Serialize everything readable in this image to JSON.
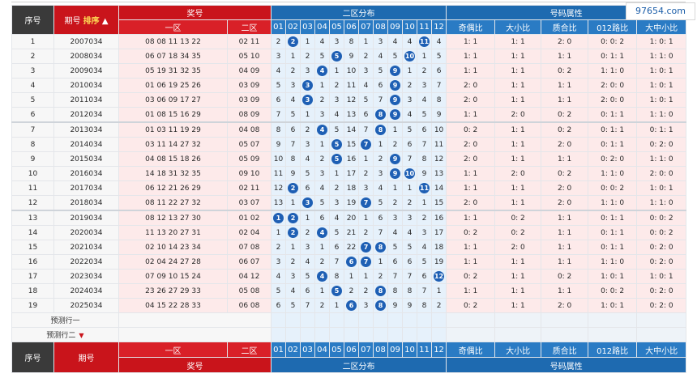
{
  "header": {
    "seq": "序号",
    "period": "期号",
    "sort": "排序",
    "prize_number": "奖号",
    "zone1": "一区",
    "zone2": "二区",
    "dist": "二区分布",
    "attr": "号码属性",
    "nums": [
      "01",
      "02",
      "03",
      "04",
      "05",
      "06",
      "07",
      "08",
      "09",
      "10",
      "11",
      "12"
    ],
    "attr_cols": [
      "奇偶比",
      "大小比",
      "质合比",
      "012路比",
      "大中小比"
    ]
  },
  "rows": [
    {
      "idx": "1",
      "period": "2007034",
      "z1": "08 08 11 13 22",
      "z2": "02 11",
      "dist": [
        "2",
        "2",
        "1",
        "4",
        "3",
        "8",
        "1",
        "3",
        "4",
        "4",
        "11",
        "4"
      ],
      "hits": [
        2,
        11
      ],
      "attrs": [
        "1: 1",
        "1: 1",
        "2: 0",
        "0: 0: 2",
        "1: 0: 1"
      ]
    },
    {
      "idx": "2",
      "period": "2008034",
      "z1": "06 07 18 34 35",
      "z2": "05 10",
      "dist": [
        "3",
        "1",
        "2",
        "5",
        "5",
        "9",
        "2",
        "4",
        "5",
        "10",
        "1",
        "5"
      ],
      "hits": [
        5,
        10
      ],
      "attrs": [
        "1: 1",
        "1: 1",
        "1: 1",
        "0: 1: 1",
        "1: 1: 0"
      ]
    },
    {
      "idx": "3",
      "period": "2009034",
      "z1": "05 19 31 32 35",
      "z2": "04 09",
      "dist": [
        "4",
        "2",
        "3",
        "4",
        "1",
        "10",
        "3",
        "5",
        "9",
        "1",
        "2",
        "6"
      ],
      "hits": [
        4,
        9
      ],
      "attrs": [
        "1: 1",
        "1: 1",
        "0: 2",
        "1: 1: 0",
        "1: 0: 1"
      ]
    },
    {
      "idx": "4",
      "period": "2010034",
      "z1": "01 06 19 25 26",
      "z2": "03 09",
      "dist": [
        "5",
        "3",
        "3",
        "1",
        "2",
        "11",
        "4",
        "6",
        "9",
        "2",
        "3",
        "7"
      ],
      "hits": [
        3,
        9
      ],
      "attrs": [
        "2: 0",
        "1: 1",
        "1: 1",
        "2: 0: 0",
        "1: 0: 1"
      ]
    },
    {
      "idx": "5",
      "period": "2011034",
      "z1": "03 06 09 17 27",
      "z2": "03 09",
      "dist": [
        "6",
        "4",
        "3",
        "2",
        "3",
        "12",
        "5",
        "7",
        "9",
        "3",
        "4",
        "8"
      ],
      "hits": [
        3,
        9
      ],
      "attrs": [
        "2: 0",
        "1: 1",
        "1: 1",
        "2: 0: 0",
        "1: 0: 1"
      ]
    },
    {
      "idx": "6",
      "period": "2012034",
      "z1": "01 08 15 16 29",
      "z2": "08 09",
      "dist": [
        "7",
        "5",
        "1",
        "3",
        "4",
        "13",
        "6",
        "8",
        "9",
        "4",
        "5",
        "9"
      ],
      "hits": [
        8,
        9
      ],
      "attrs": [
        "1: 1",
        "2: 0",
        "0: 2",
        "0: 1: 1",
        "1: 1: 0"
      ]
    },
    {
      "idx": "7",
      "period": "2013034",
      "z1": "01 03 11 19 29",
      "z2": "04 08",
      "dist": [
        "8",
        "6",
        "2",
        "4",
        "5",
        "14",
        "7",
        "8",
        "1",
        "5",
        "6",
        "10"
      ],
      "hits": [
        4,
        8
      ],
      "attrs": [
        "0: 2",
        "1: 1",
        "0: 2",
        "0: 1: 1",
        "0: 1: 1"
      ]
    },
    {
      "idx": "8",
      "period": "2014034",
      "z1": "03 11 14 27 32",
      "z2": "05 07",
      "dist": [
        "9",
        "7",
        "3",
        "1",
        "5",
        "15",
        "7",
        "1",
        "2",
        "6",
        "7",
        "11"
      ],
      "hits": [
        5,
        7
      ],
      "attrs": [
        "2: 0",
        "1: 1",
        "2: 0",
        "0: 1: 1",
        "0: 2: 0"
      ]
    },
    {
      "idx": "9",
      "period": "2015034",
      "z1": "04 08 15 18 26",
      "z2": "05 09",
      "dist": [
        "10",
        "8",
        "4",
        "2",
        "5",
        "16",
        "1",
        "2",
        "9",
        "7",
        "8",
        "12"
      ],
      "hits": [
        5,
        9
      ],
      "attrs": [
        "2: 0",
        "1: 1",
        "1: 1",
        "0: 2: 0",
        "1: 1: 0"
      ]
    },
    {
      "idx": "10",
      "period": "2016034",
      "z1": "14 18 31 32 35",
      "z2": "09 10",
      "dist": [
        "11",
        "9",
        "5",
        "3",
        "1",
        "17",
        "2",
        "3",
        "9",
        "10",
        "9",
        "13"
      ],
      "hits": [
        9,
        10
      ],
      "attrs": [
        "1: 1",
        "2: 0",
        "0: 2",
        "1: 1: 0",
        "2: 0: 0"
      ]
    },
    {
      "idx": "11",
      "period": "2017034",
      "z1": "06 12 21 26 29",
      "z2": "02 11",
      "dist": [
        "12",
        "2",
        "6",
        "4",
        "2",
        "18",
        "3",
        "4",
        "1",
        "1",
        "11",
        "14"
      ],
      "hits": [
        2,
        11
      ],
      "attrs": [
        "1: 1",
        "1: 1",
        "2: 0",
        "0: 0: 2",
        "1: 0: 1"
      ]
    },
    {
      "idx": "12",
      "period": "2018034",
      "z1": "08 11 22 27 32",
      "z2": "03 07",
      "dist": [
        "13",
        "1",
        "3",
        "5",
        "3",
        "19",
        "7",
        "5",
        "2",
        "2",
        "1",
        "15"
      ],
      "hits": [
        3,
        7
      ],
      "attrs": [
        "2: 0",
        "1: 1",
        "2: 0",
        "1: 1: 0",
        "1: 1: 0"
      ]
    },
    {
      "idx": "13",
      "period": "2019034",
      "z1": "08 12 13 27 30",
      "z2": "01 02",
      "dist": [
        "1",
        "2",
        "1",
        "6",
        "4",
        "20",
        "1",
        "6",
        "3",
        "3",
        "2",
        "16"
      ],
      "hits": [
        1,
        2
      ],
      "attrs": [
        "1: 1",
        "0: 2",
        "1: 1",
        "0: 1: 1",
        "0: 0: 2"
      ]
    },
    {
      "idx": "14",
      "period": "2020034",
      "z1": "11 13 20 27 31",
      "z2": "02 04",
      "dist": [
        "1",
        "2",
        "2",
        "4",
        "5",
        "21",
        "2",
        "7",
        "4",
        "4",
        "3",
        "17"
      ],
      "hits": [
        2,
        4
      ],
      "attrs": [
        "0: 2",
        "0: 2",
        "1: 1",
        "0: 1: 1",
        "0: 0: 2"
      ]
    },
    {
      "idx": "15",
      "period": "2021034",
      "z1": "02 10 14 23 34",
      "z2": "07 08",
      "dist": [
        "2",
        "1",
        "3",
        "1",
        "6",
        "22",
        "7",
        "8",
        "5",
        "5",
        "4",
        "18"
      ],
      "hits": [
        7,
        8
      ],
      "attrs": [
        "1: 1",
        "2: 0",
        "1: 1",
        "0: 1: 1",
        "0: 2: 0"
      ]
    },
    {
      "idx": "16",
      "period": "2022034",
      "z1": "02 04 24 27 28",
      "z2": "06 07",
      "dist": [
        "3",
        "2",
        "4",
        "2",
        "7",
        "6",
        "7",
        "1",
        "6",
        "6",
        "5",
        "19"
      ],
      "hits": [
        6,
        7
      ],
      "attrs": [
        "1: 1",
        "1: 1",
        "1: 1",
        "1: 1: 0",
        "0: 2: 0"
      ]
    },
    {
      "idx": "17",
      "period": "2023034",
      "z1": "07 09 10 15 24",
      "z2": "04 12",
      "dist": [
        "4",
        "3",
        "5",
        "4",
        "8",
        "1",
        "1",
        "2",
        "7",
        "7",
        "6",
        "12"
      ],
      "hits": [
        4,
        12
      ],
      "attrs": [
        "0: 2",
        "1: 1",
        "0: 2",
        "1: 0: 1",
        "1: 0: 1"
      ]
    },
    {
      "idx": "18",
      "period": "2024034",
      "z1": "23 26 27 29 33",
      "z2": "05 08",
      "dist": [
        "5",
        "4",
        "6",
        "1",
        "5",
        "2",
        "2",
        "8",
        "8",
        "8",
        "7",
        "1"
      ],
      "hits": [
        5,
        8
      ],
      "attrs": [
        "1: 1",
        "1: 1",
        "1: 1",
        "0: 0: 2",
        "0: 2: 0"
      ]
    },
    {
      "idx": "19",
      "period": "2025034",
      "z1": "04 15 22 28 33",
      "z2": "06 08",
      "dist": [
        "6",
        "5",
        "7",
        "2",
        "1",
        "6",
        "3",
        "8",
        "9",
        "9",
        "8",
        "2"
      ],
      "hits": [
        6,
        8
      ],
      "attrs": [
        "0: 2",
        "1: 1",
        "2: 0",
        "1: 0: 1",
        "0: 2: 0"
      ]
    }
  ],
  "pred_rows": [
    "预测行一",
    "预测行二"
  ],
  "footer": {
    "seq": "序号",
    "period": "期号",
    "prize_number": "奖号",
    "zone1": "一区",
    "zone2": "二区",
    "dist": "二区分布",
    "attr": "号码属性"
  },
  "watermark": "97654.com",
  "colors": {
    "red": "#c9141b",
    "blue": "#1e6ab0",
    "ball": "#1e5fb4",
    "dark": "#3a3a3a"
  }
}
